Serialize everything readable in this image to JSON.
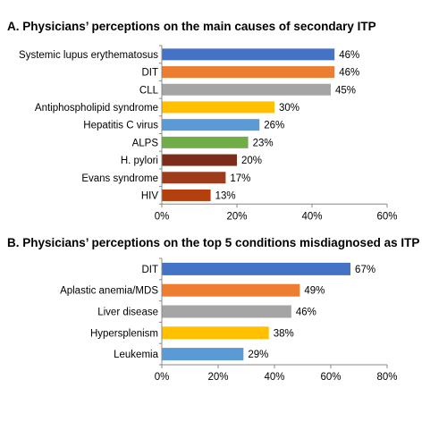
{
  "chart_data": [
    {
      "type": "bar",
      "orientation": "horizontal",
      "title": "A. Physicians’ perceptions on the main causes of secondary ITP",
      "categories": [
        "Systemic lupus erythematosus",
        "DIT",
        "CLL",
        "Antiphospholipid syndrome",
        "Hepatitis C virus",
        "ALPS",
        "H. pylori",
        "Evans syndrome",
        "HIV"
      ],
      "values": [
        46,
        46,
        45,
        30,
        26,
        23,
        20,
        17,
        13
      ],
      "value_labels": [
        "46%",
        "46%",
        "45%",
        "30%",
        "26%",
        "23%",
        "20%",
        "17%",
        "13%"
      ],
      "colors": [
        "#4472C4",
        "#ED7D31",
        "#A5A5A5",
        "#FFC000",
        "#5B9BD5",
        "#70AD47",
        "#7B2C1A",
        "#9E3B1A",
        "#B5400F"
      ],
      "xlim": [
        0,
        60
      ],
      "xticks": [
        "0%",
        "20%",
        "40%",
        "60%"
      ],
      "grid": false
    },
    {
      "type": "bar",
      "orientation": "horizontal",
      "title": "B. Physicians’ perceptions on the top 5 conditions misdiagnosed as ITP",
      "categories": [
        "DIT",
        "Aplastic anemia/MDS",
        "Liver disease",
        "Hypersplenism",
        "Leukemia"
      ],
      "values": [
        67,
        49,
        46,
        38,
        29
      ],
      "value_labels": [
        "67%",
        "49%",
        "46%",
        "38%",
        "29%"
      ],
      "colors": [
        "#4472C4",
        "#ED7D31",
        "#A5A5A5",
        "#FFC000",
        "#5B9BD5"
      ],
      "xlim": [
        0,
        80
      ],
      "xticks": [
        "0%",
        "20%",
        "40%",
        "60%",
        "80%"
      ],
      "grid": false
    }
  ]
}
